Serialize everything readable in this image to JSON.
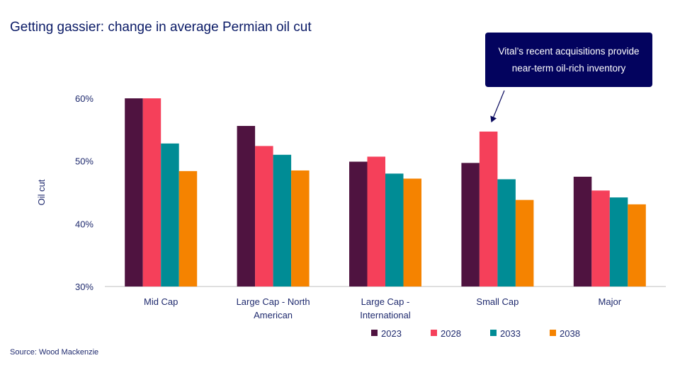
{
  "title": "Getting gassier: change in average  Permian oil cut",
  "callout": {
    "line1": "Vital’s recent acquisitions provide",
    "line2": "near-term oil-rich inventory"
  },
  "source": "Source: Wood Mackenzie",
  "chart_data": {
    "type": "bar",
    "title": "Getting gassier: change in average  Permian oil cut",
    "xlabel": "",
    "ylabel": "Oil cut",
    "ylim": [
      30,
      60
    ],
    "yticks": [
      "30%",
      "40%",
      "50%",
      "60%"
    ],
    "ytick_values": [
      30,
      40,
      50,
      60
    ],
    "categories": [
      [
        "Mid Cap"
      ],
      [
        "Large Cap - North",
        "American"
      ],
      [
        "Large Cap -",
        "International"
      ],
      [
        "Small Cap"
      ],
      [
        "Major"
      ]
    ],
    "legend_position": "bottom",
    "series": [
      {
        "name": "2023",
        "color": "#4f1340",
        "values": [
          60.0,
          55.6,
          49.9,
          49.7,
          47.5
        ]
      },
      {
        "name": "2028",
        "color": "#f5405a",
        "values": [
          60.0,
          52.4,
          50.7,
          54.7,
          45.3
        ]
      },
      {
        "name": "2033",
        "color": "#008c95",
        "values": [
          52.8,
          51.0,
          48.0,
          47.1,
          44.2
        ]
      },
      {
        "name": "2038",
        "color": "#f58300",
        "values": [
          48.4,
          48.5,
          47.2,
          43.8,
          43.1
        ]
      }
    ]
  }
}
